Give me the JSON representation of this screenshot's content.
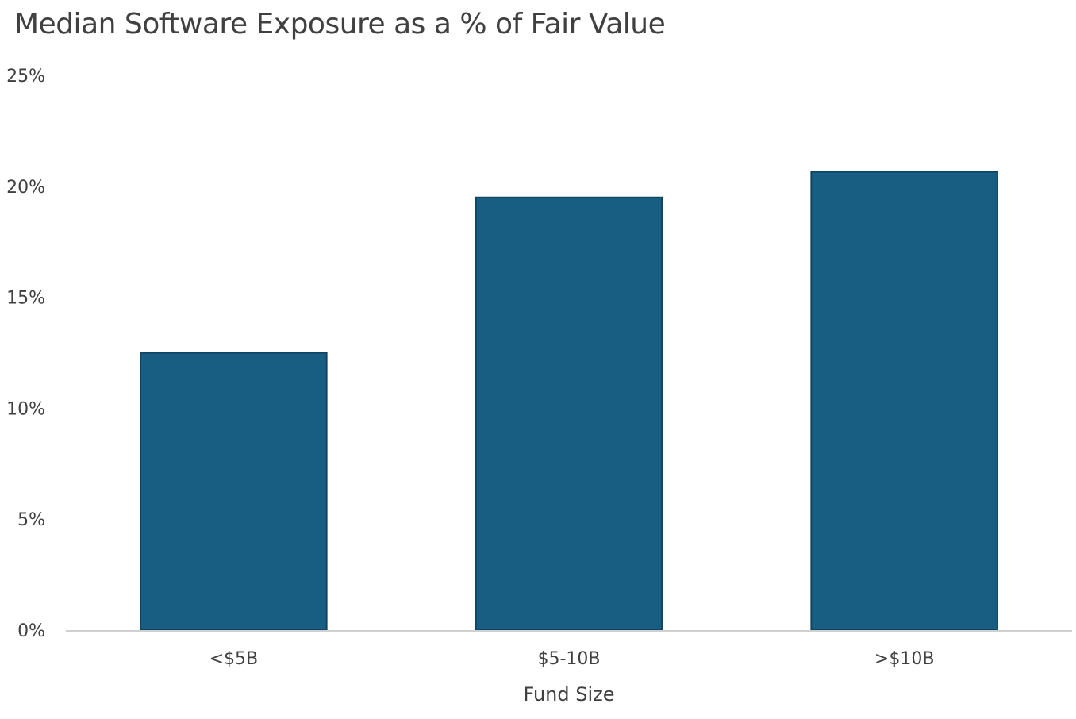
{
  "chart_data": {
    "type": "bar",
    "title": "Median Software Exposure as a % of Fair Value",
    "xlabel": "Fund Size",
    "ylabel": "",
    "categories": [
      "<$5B",
      "$5-10B",
      ">$10B"
    ],
    "values": [
      12.5,
      19.5,
      20.65
    ],
    "ylim": [
      0,
      25
    ],
    "yticks": [
      0,
      5,
      10,
      15,
      20,
      25
    ],
    "ytick_labels": [
      "0%",
      "5%",
      "10%",
      "15%",
      "20%",
      "25%"
    ],
    "grid": false,
    "legend": "none",
    "bar_color": "#175e82",
    "bar_edge_color": "#0f4462",
    "axis_color": "#d0d0d0",
    "text_color": "#404040"
  }
}
